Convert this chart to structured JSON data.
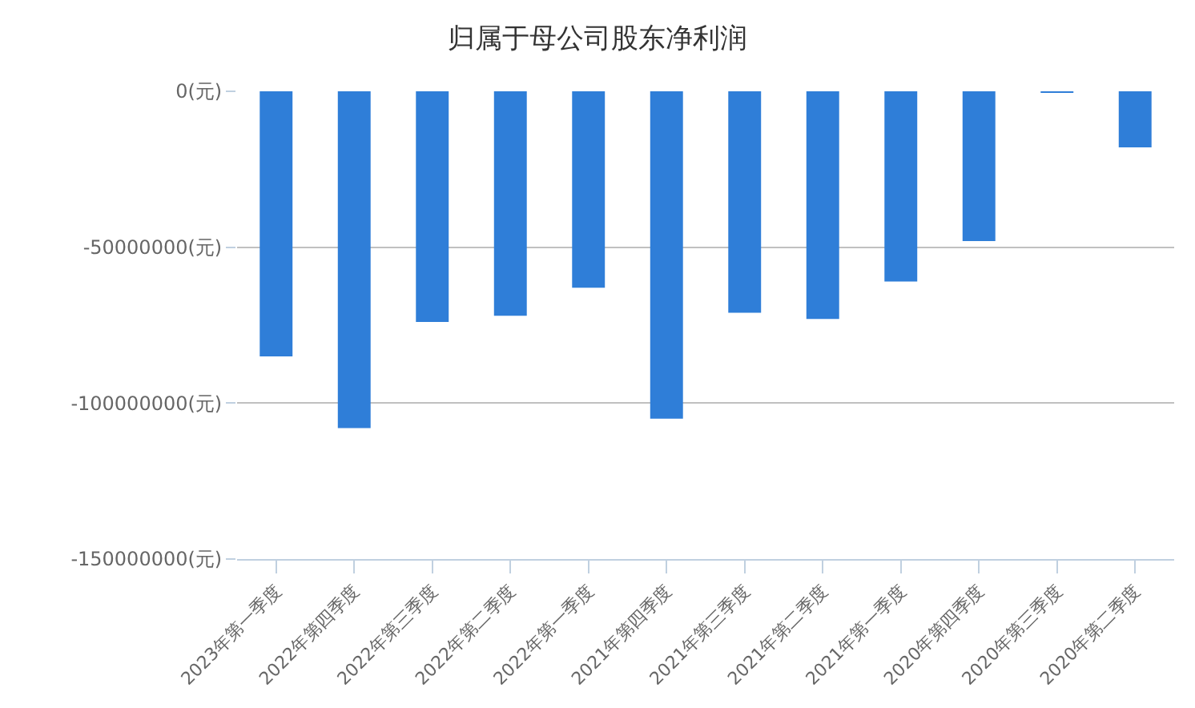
{
  "chart_data": {
    "type": "bar",
    "title": "归属于母公司股东净利润",
    "categories": [
      "2023年第一季度",
      "2022年第四季度",
      "2022年第三季度",
      "2022年第二季度",
      "2022年第一季度",
      "2021年第四季度",
      "2021年第三季度",
      "2021年第二季度",
      "2021年第一季度",
      "2020年第四季度",
      "2020年第三季度",
      "2020年第二季度"
    ],
    "values": [
      -85000000,
      -108000000,
      -74000000,
      -72000000,
      -63000000,
      -105000000,
      -71000000,
      -73000000,
      -61000000,
      -48000000,
      -500000,
      -18000000
    ],
    "color": "#2f7ed8",
    "ylim": [
      -150000000,
      0
    ],
    "yticks": [
      {
        "value": 0,
        "label": "0(元)"
      },
      {
        "value": -50000000,
        "label": "-50000000(元)"
      },
      {
        "value": -100000000,
        "label": "-100000000(元)"
      },
      {
        "value": -150000000,
        "label": "-150000000(元)"
      }
    ],
    "grid": "y",
    "legend": false
  }
}
